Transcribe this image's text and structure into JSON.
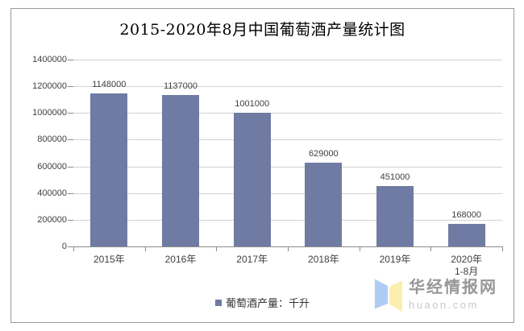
{
  "title": "2015-2020年8月中国葡萄酒产量统计图",
  "chart_data": {
    "type": "bar",
    "title": "2015-2020年8月中国葡萄酒产量统计图",
    "categories": [
      {
        "label": "2015年"
      },
      {
        "label": "2016年"
      },
      {
        "label": "2017年"
      },
      {
        "label": "2018年"
      },
      {
        "label": "2019年"
      },
      {
        "label": "2020年",
        "sublabel": "1-8月"
      }
    ],
    "values": [
      1148000,
      1137000,
      1001000,
      629000,
      451000,
      168000
    ],
    "xlabel": "",
    "ylabel": "",
    "ylim": [
      0,
      1400000
    ],
    "yticks": [
      0,
      200000,
      400000,
      600000,
      800000,
      1000000,
      1200000,
      1400000
    ],
    "grid": true,
    "legend_position": "bottom",
    "legend_label": "葡萄酒产量：千升",
    "bar_color": "#6F7BA2",
    "gridline_color": "#d3d3d3",
    "axis_color": "#8c8c8c"
  },
  "watermark": {
    "brand": "华经情报网",
    "domain": "huaon.com",
    "logo": "open-book-logo",
    "logo_blue": "#AECBF2",
    "logo_yellow": "#FBEFB0"
  }
}
